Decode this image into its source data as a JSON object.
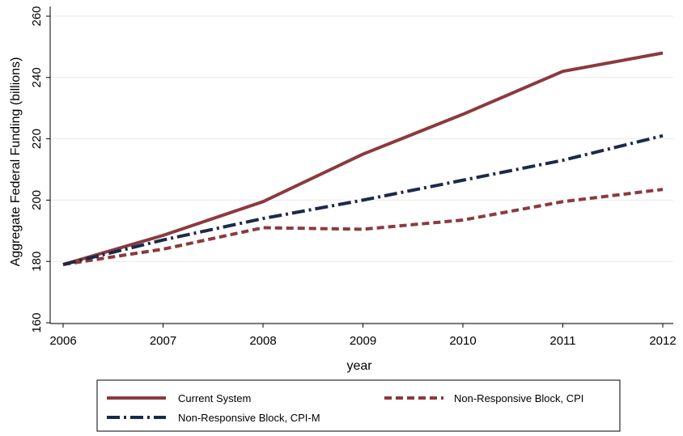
{
  "chart_data": {
    "type": "line",
    "title": "",
    "xlabel": "year",
    "ylabel": "Aggregate Federal Funding (billions)",
    "x": [
      2006,
      2007,
      2008,
      2009,
      2010,
      2011,
      2012
    ],
    "xlim": [
      2006,
      2012
    ],
    "ylim": [
      155,
      262
    ],
    "xticks": [
      2006,
      2007,
      2008,
      2009,
      2010,
      2011,
      2012
    ],
    "yticks": [
      160,
      180,
      200,
      220,
      240,
      260
    ],
    "grid": "horizontal",
    "legend_position": "bottom",
    "series": [
      {
        "name": "Current System",
        "values": [
          179,
          188.5,
          199.5,
          215,
          228,
          242,
          248
        ],
        "color": "#8b3a3e",
        "style": "solid"
      },
      {
        "name": "Non-Responsive Block, CPI",
        "values": [
          179,
          184,
          191,
          190.5,
          193.5,
          199.5,
          203.5
        ],
        "color": "#8b3a3e",
        "style": "dash"
      },
      {
        "name": "Non-Responsive Block, CPI-M",
        "values": [
          179,
          187,
          194,
          200,
          206.5,
          213,
          221
        ],
        "color": "#1a2a4a",
        "style": "dashdot"
      }
    ]
  }
}
